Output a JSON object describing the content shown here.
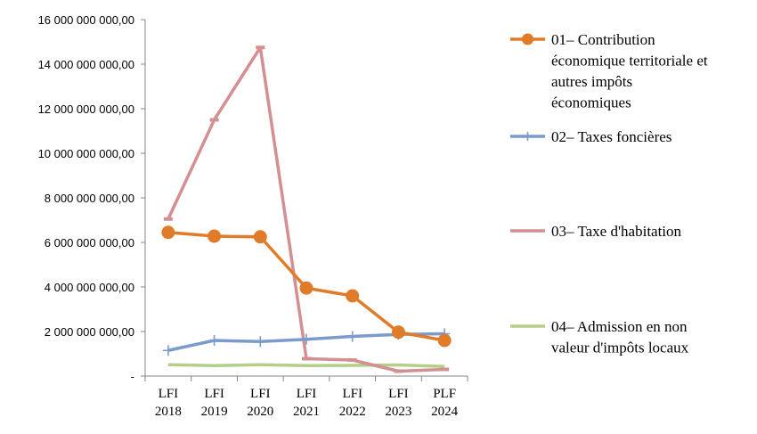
{
  "chart_data": {
    "type": "line",
    "categories": [
      [
        "LFI",
        "2018"
      ],
      [
        "LFI",
        "2019"
      ],
      [
        "LFI",
        "2020"
      ],
      [
        "LFI",
        "2021"
      ],
      [
        "LFI",
        "2022"
      ],
      [
        "LFI",
        "2023"
      ],
      [
        "PLF",
        "2024"
      ]
    ],
    "ylim": [
      0,
      16000000000
    ],
    "yticks": [
      {
        "value": 0,
        "label": "-"
      },
      {
        "value": 2000000000,
        "label": "2 000 000 000,00"
      },
      {
        "value": 4000000000,
        "label": "4 000 000 000,00"
      },
      {
        "value": 6000000000,
        "label": "6 000 000 000,00"
      },
      {
        "value": 8000000000,
        "label": "8 000 000 000,00"
      },
      {
        "value": 10000000000,
        "label": "10 000 000 000,00"
      },
      {
        "value": 12000000000,
        "label": "12 000 000 000,00"
      },
      {
        "value": 14000000000,
        "label": "14 000 000 000,00"
      },
      {
        "value": 16000000000,
        "label": "16 000 000 000,00"
      }
    ],
    "grid": false,
    "legend_position": "right",
    "series": [
      {
        "name_lines": [
          "01– Contribution",
          "économique territoriale et",
          "autres impôts",
          "économiques"
        ],
        "color": "#e07b2a",
        "marker": "circle",
        "values": [
          6450000000,
          6280000000,
          6250000000,
          3950000000,
          3600000000,
          1970000000,
          1600000000
        ]
      },
      {
        "name_lines": [
          "02– Taxes foncières"
        ],
        "color": "#7b9bcd",
        "marker": "plus",
        "values": [
          1150000000,
          1600000000,
          1550000000,
          1650000000,
          1780000000,
          1870000000,
          1900000000
        ]
      },
      {
        "name_lines": [
          "03– Taxe d'habitation"
        ],
        "color": "#d48f92",
        "marker": "dash",
        "values": [
          7050000000,
          11500000000,
          14750000000,
          780000000,
          720000000,
          220000000,
          300000000
        ]
      },
      {
        "name_lines": [
          "04– Admission en non",
          "valeur d'impôts locaux"
        ],
        "color": "#b5cf8b",
        "marker": "none",
        "values": [
          510000000,
          470000000,
          510000000,
          470000000,
          480000000,
          500000000,
          430000000
        ]
      }
    ]
  }
}
